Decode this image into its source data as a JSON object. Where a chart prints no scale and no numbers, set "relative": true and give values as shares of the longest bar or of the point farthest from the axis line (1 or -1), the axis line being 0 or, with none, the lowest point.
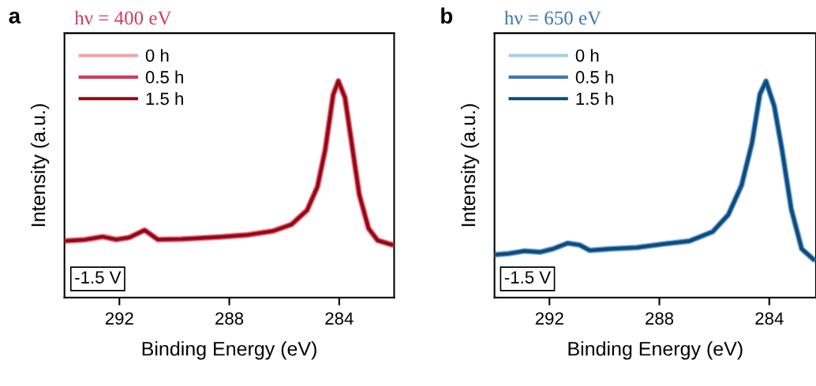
{
  "chart_data": [
    {
      "type": "line",
      "title": "hν = 400 eV",
      "xlabel": "Binding Energy (eV)",
      "ylabel": "Intensity (a.u.)",
      "relative": true,
      "xlim": [
        294,
        282
      ],
      "xticks": [
        292,
        288,
        284
      ],
      "tick_labels": "x",
      "legend": "top left",
      "grid": false,
      "line_style": "solid",
      "annotations": [
        "a",
        "-1.5 V"
      ],
      "x": [
        293.93,
        293.27,
        292.6,
        292.12,
        291.65,
        291.08,
        290.6,
        289.74,
        288.31,
        287.36,
        286.41,
        285.74,
        285.17,
        284.79,
        284.51,
        284.22,
        284.03,
        283.79,
        283.55,
        283.27,
        282.93,
        282.6,
        282.08
      ],
      "series": [
        {
          "name": "0 h",
          "color": "#f4a0a4",
          "values": [
            0.262,
            0.267,
            0.281,
            0.268,
            0.277,
            0.311,
            0.268,
            0.27,
            0.28,
            0.289,
            0.307,
            0.337,
            0.403,
            0.512,
            0.681,
            0.935,
            0.999,
            0.923,
            0.717,
            0.476,
            0.319,
            0.264,
            0.244
          ]
        },
        {
          "name": "0.5 h",
          "color": "#d33b5e",
          "values": [
            0.262,
            0.267,
            0.281,
            0.268,
            0.277,
            0.311,
            0.268,
            0.27,
            0.28,
            0.289,
            0.307,
            0.337,
            0.403,
            0.512,
            0.681,
            0.935,
            1.0,
            0.923,
            0.717,
            0.476,
            0.319,
            0.264,
            0.244
          ]
        },
        {
          "name": "1.5 h",
          "color": "#8b0a14",
          "values": [
            0.262,
            0.267,
            0.281,
            0.268,
            0.277,
            0.311,
            0.268,
            0.27,
            0.28,
            0.289,
            0.307,
            0.337,
            0.403,
            0.512,
            0.681,
            0.935,
            0.999,
            0.923,
            0.717,
            0.476,
            0.319,
            0.264,
            0.244
          ]
        }
      ]
    },
    {
      "type": "line",
      "title": "hν = 650 eV",
      "xlabel": "Binding Energy (eV)",
      "ylabel": "Intensity (a.u.)",
      "relative": true,
      "xlim": [
        294,
        282.3
      ],
      "xticks": [
        292,
        288,
        284
      ],
      "tick_labels": "x",
      "legend": "top left",
      "grid": false,
      "line_style": "solid",
      "annotations": [
        "b",
        "-1.5 V"
      ],
      "x": [
        294.0,
        293.49,
        292.91,
        292.34,
        291.87,
        291.34,
        290.91,
        290.53,
        289.77,
        288.82,
        287.87,
        286.91,
        286.06,
        285.49,
        285.01,
        284.63,
        284.34,
        284.12,
        283.82,
        283.53,
        283.2,
        282.82,
        282.39
      ],
      "series": [
        {
          "name": "0 h",
          "color": "#a6cde3",
          "values": [
            0.198,
            0.203,
            0.215,
            0.21,
            0.225,
            0.251,
            0.243,
            0.218,
            0.225,
            0.231,
            0.247,
            0.261,
            0.304,
            0.383,
            0.518,
            0.713,
            0.939,
            0.997,
            0.884,
            0.677,
            0.408,
            0.225,
            0.176
          ]
        },
        {
          "name": "0.5 h",
          "color": "#3e78b5",
          "values": [
            0.198,
            0.203,
            0.215,
            0.21,
            0.225,
            0.251,
            0.243,
            0.218,
            0.225,
            0.231,
            0.247,
            0.261,
            0.304,
            0.383,
            0.518,
            0.713,
            0.939,
            1.0,
            0.884,
            0.677,
            0.408,
            0.225,
            0.176
          ]
        },
        {
          "name": "1.5 h",
          "color": "#0d4a78",
          "values": [
            0.198,
            0.203,
            0.215,
            0.21,
            0.225,
            0.251,
            0.243,
            0.218,
            0.225,
            0.231,
            0.247,
            0.261,
            0.304,
            0.383,
            0.518,
            0.713,
            0.939,
            0.997,
            0.884,
            0.677,
            0.408,
            0.225,
            0.176
          ]
        }
      ]
    }
  ]
}
